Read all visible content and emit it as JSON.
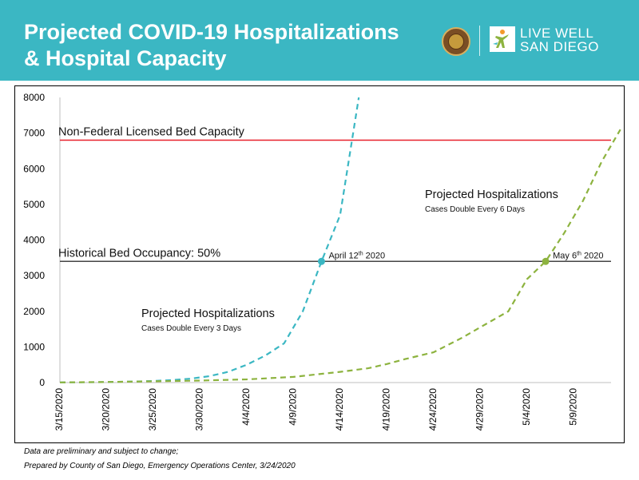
{
  "header": {
    "title_line1": "Projected COVID-19 Hospitalizations",
    "title_line2": "& Hospital Capacity",
    "logo_line1": "LIVE WELL",
    "logo_line2": "SAN DIEGO",
    "background_color": "#3bb7c3"
  },
  "chart_data": {
    "type": "line",
    "title": "",
    "xlabel": "",
    "ylabel": "",
    "ylim": [
      0,
      8000
    ],
    "yticks": [
      0,
      1000,
      2000,
      3000,
      4000,
      5000,
      6000,
      7000,
      8000
    ],
    "x_start": "3/15/2020",
    "x_end": "5/13/2020",
    "xticks": [
      "3/15/2020",
      "3/20/2020",
      "3/25/2020",
      "3/30/2020",
      "4/4/2020",
      "4/9/2020",
      "4/14/2020",
      "4/19/2020",
      "4/24/2020",
      "4/29/2020",
      "5/4/2020",
      "5/9/2020"
    ],
    "grid": false,
    "legend": "none",
    "series": [
      {
        "label_title": "Projected Hospitalizations",
        "label_subtitle": "Cases Double Every 3 Days",
        "color": "#3bb7c3",
        "style": "dashed",
        "x": [
          "3/15/2020",
          "3/17/2020",
          "3/19/2020",
          "3/21/2020",
          "3/23/2020",
          "3/25/2020",
          "3/27/2020",
          "3/29/2020",
          "3/31/2020",
          "4/2/2020",
          "4/4/2020",
          "4/6/2020",
          "4/8/2020",
          "4/10/2020",
          "4/12/2020",
          "4/14/2020",
          "4/16/2020"
        ],
        "y": [
          5,
          8,
          12,
          20,
          30,
          45,
          70,
          110,
          180,
          300,
          500,
          760,
          1100,
          2000,
          3400,
          4700,
          8000
        ]
      },
      {
        "label_title": "Projected Hospitalizations",
        "label_subtitle": "Cases Double Every 6 Days",
        "color": "#8db33f",
        "style": "dashed",
        "x": [
          "3/15/2020",
          "3/20/2020",
          "3/25/2020",
          "3/30/2020",
          "4/4/2020",
          "4/9/2020",
          "4/14/2020",
          "4/17/2020",
          "4/19/2020",
          "4/21/2020",
          "4/24/2020",
          "4/27/2020",
          "4/30/2020",
          "5/2/2020",
          "5/4/2020",
          "5/6/2020",
          "5/8/2020",
          "5/10/2020",
          "5/12/2020",
          "5/14/2020"
        ],
        "y": [
          5,
          15,
          35,
          55,
          90,
          160,
          300,
          400,
          520,
          660,
          850,
          1250,
          1700,
          2000,
          2900,
          3400,
          4200,
          5100,
          6200,
          7100
        ]
      }
    ],
    "reference_lines": [
      {
        "label": "Non-Federal Licensed Bed Capacity",
        "value": 6800,
        "color": "#e8202a"
      },
      {
        "label": "Historical Bed Occupancy: 50%",
        "value": 3400,
        "color": "#444444"
      }
    ],
    "annotations": [
      {
        "date": "April 12",
        "sup": "th",
        "year": "2020",
        "x": "4/12/2020",
        "y": 3400,
        "color": "#3bb7c3"
      },
      {
        "date": "May 6",
        "sup": "th",
        "year": "2020",
        "x": "5/6/2020",
        "y": 3400,
        "color": "#8db33f"
      }
    ]
  },
  "footer": {
    "line1": "Data are preliminary and subject to change;",
    "line2": "Prepared by County of San Diego, Emergency Operations Center, 3/24/2020"
  }
}
